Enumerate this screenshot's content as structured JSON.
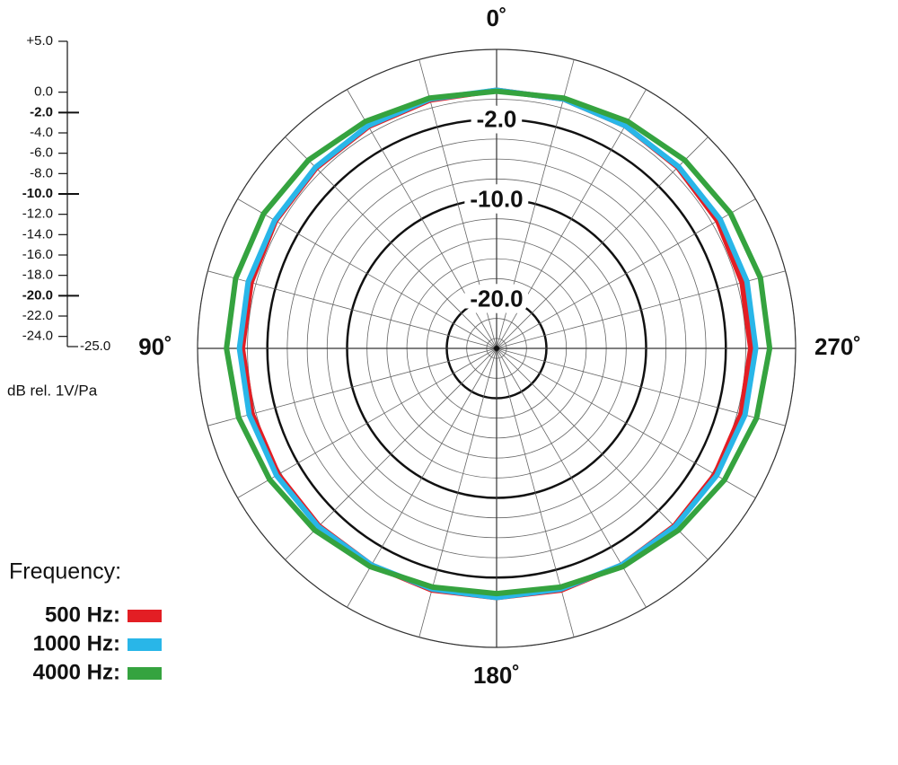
{
  "chart_data": {
    "type": "polar",
    "theta": [
      0,
      15,
      30,
      45,
      60,
      75,
      90,
      105,
      120,
      135,
      150,
      165,
      180,
      195,
      210,
      225,
      240,
      255,
      270,
      285,
      300,
      315,
      330,
      345
    ],
    "thetaticks": [
      {
        "value": 0,
        "label": "0˚"
      },
      {
        "value": 90,
        "label": "90˚"
      },
      {
        "value": 180,
        "label": "180˚"
      },
      {
        "value": 270,
        "label": "270˚"
      }
    ],
    "ylim": [
      -25,
      5
    ],
    "yticks": [
      {
        "value": 5,
        "label": "+5.0"
      },
      {
        "value": 0,
        "label": "0.0"
      },
      {
        "value": -2,
        "label": "-2.0"
      },
      {
        "value": -4,
        "label": "-4.0"
      },
      {
        "value": -6,
        "label": "-6.0"
      },
      {
        "value": -8,
        "label": "-8.0"
      },
      {
        "value": -10,
        "label": "-10.0"
      },
      {
        "value": -12,
        "label": "-12.0"
      },
      {
        "value": -14,
        "label": "-14.0"
      },
      {
        "value": -16,
        "label": "-16.0"
      },
      {
        "value": -18,
        "label": "-18.0"
      },
      {
        "value": -20,
        "label": "-20.0"
      },
      {
        "value": -22,
        "label": "-22.0"
      },
      {
        "value": -24,
        "label": "-24.0"
      },
      {
        "value": -25,
        "label": "-25.0"
      }
    ],
    "ring_labels": [
      {
        "value": -2,
        "label": "-2.0"
      },
      {
        "value": -10,
        "label": "-10.0"
      },
      {
        "value": -20,
        "label": "-20.0"
      }
    ],
    "y_label": "dB rel. 1V/Pa",
    "legend_title": "Frequency:",
    "series": [
      {
        "name": "500 Hz:",
        "color": "#e31e24",
        "values": [
          0.9,
          0.8,
          0.7,
          0.6,
          0.6,
          0.5,
          0.5,
          0.4,
          0.3,
          0.2,
          0.1,
          0.1,
          0.0,
          0.1,
          0.1,
          0.2,
          0.3,
          0.4,
          0.5,
          0.5,
          0.6,
          0.7,
          0.8,
          0.9
        ]
      },
      {
        "name": "1000 Hz:",
        "color": "#29b6e8",
        "values": [
          0.9,
          0.9,
          0.8,
          0.7,
          0.7,
          0.8,
          0.8,
          0.7,
          0.5,
          0.3,
          0.1,
          0.0,
          0.0,
          0.0,
          0.1,
          0.3,
          0.5,
          0.8,
          1.0,
          1.0,
          0.9,
          0.8,
          0.8,
          0.9
        ]
      },
      {
        "name": "4000 Hz:",
        "color": "#35a33f",
        "values": [
          0.8,
          1.0,
          1.3,
          1.7,
          2.0,
          2.1,
          2.1,
          1.8,
          1.3,
          0.8,
          0.3,
          -0.2,
          -0.4,
          -0.2,
          0.3,
          0.8,
          1.4,
          2.0,
          2.4,
          2.4,
          2.1,
          1.7,
          1.3,
          1.0
        ]
      }
    ]
  }
}
